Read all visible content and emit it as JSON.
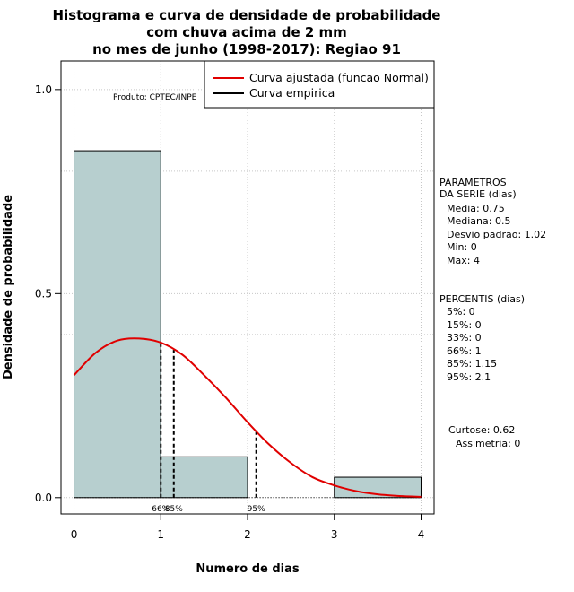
{
  "chart_data": {
    "type": "bar",
    "title_lines": [
      "Histograma e curva de densidade de probabilidade",
      "com chuva acima de 2 mm",
      "no mes de junho (1998-2017): Regiao 91"
    ],
    "xlabel": "Numero de dias",
    "ylabel": "Densidade de probabilidade",
    "xlim": [
      -0.15,
      4.15
    ],
    "ylim": [
      -0.04,
      1.07
    ],
    "xticks": [
      "0",
      "1",
      "2",
      "3",
      "4"
    ],
    "xtick_values": [
      0,
      1,
      2,
      3,
      4
    ],
    "yticks": [
      "0.0",
      "0.5",
      "1.0"
    ],
    "ytick_values": [
      0.0,
      0.5,
      1.0
    ],
    "grid": true,
    "bins": [
      {
        "x0": 0,
        "x1": 1,
        "density": 0.85
      },
      {
        "x0": 1,
        "x1": 2,
        "density": 0.1
      },
      {
        "x0": 2,
        "x1": 3,
        "density": 0.0
      },
      {
        "x0": 3,
        "x1": 4,
        "density": 0.05
      }
    ],
    "fitted_curve": {
      "name": "Curva ajustada (funcao Normal)",
      "color": "#e00000",
      "x": [
        0,
        0.25,
        0.5,
        0.75,
        1.0,
        1.25,
        1.5,
        1.75,
        2.0,
        2.25,
        2.5,
        2.75,
        3.0,
        3.25,
        3.5,
        3.75,
        4.0
      ],
      "y": [
        0.3,
        0.355,
        0.385,
        0.39,
        0.38,
        0.35,
        0.3,
        0.245,
        0.185,
        0.13,
        0.085,
        0.05,
        0.03,
        0.016,
        0.008,
        0.004,
        0.002
      ]
    },
    "empirical_curve": {
      "name": "Curva empirica",
      "color": "#000000"
    },
    "percentile_lines": [
      {
        "x": 1.0,
        "label": "66%"
      },
      {
        "x": 1.15,
        "label": "85%"
      },
      {
        "x": 2.1,
        "label": "95%"
      }
    ],
    "watermark": "Produto: CPTEC/INPE",
    "legend_position": "top-right",
    "bar_color": "#b7cfcf"
  },
  "side_panel": {
    "parametros": [
      "PARAMETROS",
      "DA SERIE (dias)",
      "Media: 0.75",
      "Mediana: 0.5",
      "Desvio padrao: 1.02",
      "Min: 0",
      "Max: 4"
    ],
    "percentis": [
      "PERCENTIS (dias)",
      "5%: 0",
      "15%: 0",
      "33%: 0",
      "66%: 1",
      "85%: 1.15",
      "95%: 2.1"
    ],
    "curtose": "Curtose: 0.62",
    "assimetria": "Assimetria: 0"
  }
}
